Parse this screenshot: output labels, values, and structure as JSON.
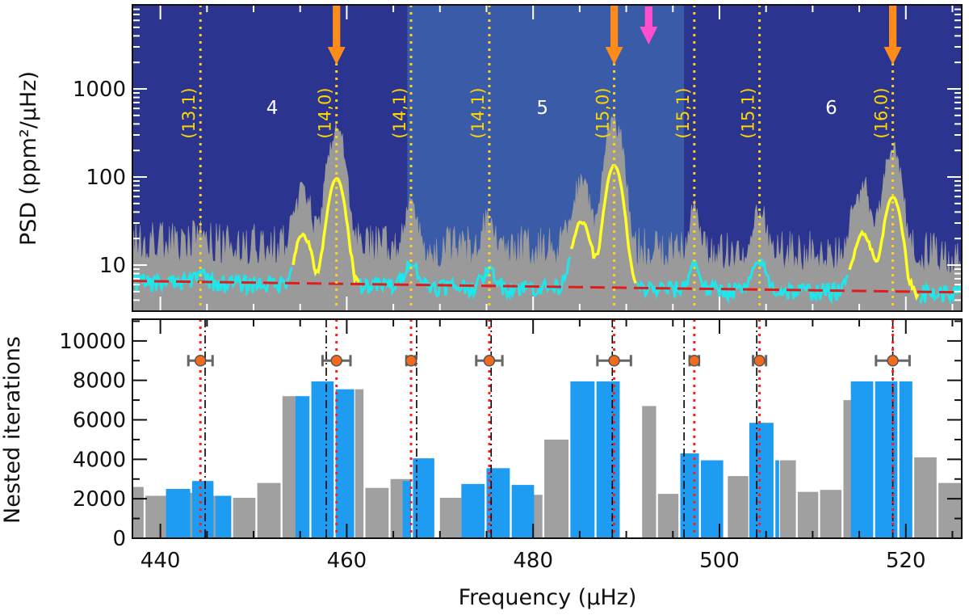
{
  "chart_data": [
    {
      "type": "line",
      "panel": "top",
      "xlabel": "",
      "ylabel": "PSD (ppm²/μHz)",
      "xlim": [
        437,
        526
      ],
      "ylim": [
        3,
        9000
      ],
      "yscale": "log",
      "ytick_labels": [
        "10",
        "100",
        "1000"
      ],
      "yticks": [
        10,
        100,
        1000
      ],
      "colors": {
        "panel_background": "#2b3590",
        "highlight_region": "#3a5ba8",
        "psd_raw": "#9a9a9a",
        "psd_smoothed": "#1ee6ea",
        "psd_fit_modes": "#ffff24",
        "background_fit": "#e11c1c",
        "mode_lines": "#ffd21f",
        "radial_arrows": "#ff8c1a",
        "numax_arrow": "#ff4fcf"
      },
      "regions": [
        {
          "label": "4",
          "x_center": 452
        },
        {
          "label": "5",
          "x_center": 481
        },
        {
          "label": "6",
          "x_center": 512
        }
      ],
      "highlight_range": [
        466.5,
        496.2
      ],
      "mode_lines": [
        {
          "label": "(13,1)",
          "x": 444.3
        },
        {
          "label": "(14,0)",
          "x": 458.9
        },
        {
          "label": "(14,1)",
          "x": 466.9
        },
        {
          "label": "(14,1)",
          "x": 475.3
        },
        {
          "label": "(15,0)",
          "x": 488.7
        },
        {
          "label": "(15,1)",
          "x": 497.3
        },
        {
          "label": "(15,1)",
          "x": 504.3
        },
        {
          "label": "(16,0)",
          "x": 518.6
        }
      ],
      "radial_arrows_x": [
        458.9,
        488.7,
        518.6
      ],
      "numax_arrow_x": 492.4,
      "background_fit": {
        "x": [
          437,
          526
        ],
        "y": [
          6.6,
          4.9
        ]
      },
      "peaks": [
        {
          "x": 444.3,
          "width": 0.6,
          "smooth": 2,
          "raw": 9
        },
        {
          "x": 455.3,
          "width": 0.7,
          "smooth": 16,
          "raw": 70
        },
        {
          "x": 458.9,
          "width": 0.7,
          "smooth": 90,
          "raw": 450
        },
        {
          "x": 466.9,
          "width": 0.6,
          "smooth": 5,
          "raw": 40
        },
        {
          "x": 475.3,
          "width": 0.6,
          "smooth": 3,
          "raw": 25
        },
        {
          "x": 485.2,
          "width": 0.8,
          "smooth": 25,
          "raw": 90
        },
        {
          "x": 488.7,
          "width": 0.7,
          "smooth": 130,
          "raw": 550
        },
        {
          "x": 497.3,
          "width": 0.5,
          "smooth": 5,
          "raw": 35
        },
        {
          "x": 504.3,
          "width": 0.6,
          "smooth": 6,
          "raw": 40
        },
        {
          "x": 515.4,
          "width": 0.8,
          "smooth": 18,
          "raw": 80
        },
        {
          "x": 518.6,
          "width": 0.7,
          "smooth": 55,
          "raw": 260
        }
      ],
      "fit_segments": [
        [
          454.2,
          461.3
        ],
        [
          484.0,
          491.0
        ],
        [
          513.8,
          521.4
        ]
      ]
    },
    {
      "type": "bar",
      "panel": "bottom",
      "xlabel": "Frequency (μHz)",
      "ylabel": "Nested iterations",
      "xlim": [
        437,
        526
      ],
      "ylim": [
        0,
        11100
      ],
      "xticks": [
        440,
        460,
        480,
        500,
        520
      ],
      "xtick_labels": [
        "440",
        "460",
        "480",
        "500",
        "520"
      ],
      "yticks": [
        0,
        2000,
        4000,
        6000,
        8000,
        10000
      ],
      "ytick_labels": [
        "0",
        "2000",
        "4000",
        "6000",
        "8000",
        "10000"
      ],
      "colors": {
        "grey_bars": "#a0a0a0",
        "blue_bars": "#1e9cf2",
        "estimate_lines": "#ff1c1c",
        "reference_lines": "#000000",
        "marker_fill": "#f26a1e",
        "marker_edge": "#555555",
        "errorbar": "#666666"
      },
      "grey_bars": [
        {
          "x0": 437.0,
          "x1": 438.2,
          "value": 2600
        },
        {
          "x0": 438.4,
          "x1": 440.6,
          "value": 2150
        },
        {
          "x0": 440.8,
          "x1": 442.7,
          "value": 2200
        },
        {
          "x0": 442.9,
          "x1": 444.9,
          "value": 2300
        },
        {
          "x0": 445.1,
          "x1": 447.6,
          "value": 2150
        },
        {
          "x0": 447.8,
          "x1": 450.2,
          "value": 2050
        },
        {
          "x0": 450.4,
          "x1": 452.9,
          "value": 2800
        },
        {
          "x0": 453.1,
          "x1": 455.0,
          "value": 7200
        },
        {
          "x0": 460.9,
          "x1": 461.8,
          "value": 7550
        },
        {
          "x0": 462.0,
          "x1": 464.5,
          "value": 2550
        },
        {
          "x0": 464.7,
          "x1": 466.9,
          "value": 3000
        },
        {
          "x0": 470.0,
          "x1": 472.3,
          "value": 2050
        },
        {
          "x0": 478.3,
          "x1": 481.0,
          "value": 2200
        },
        {
          "x0": 481.2,
          "x1": 483.8,
          "value": 5000
        },
        {
          "x0": 491.7,
          "x1": 493.2,
          "value": 6700
        },
        {
          "x0": 493.4,
          "x1": 495.6,
          "value": 2250
        },
        {
          "x0": 500.9,
          "x1": 503.1,
          "value": 3150
        },
        {
          "x0": 506.5,
          "x1": 508.2,
          "value": 3950
        },
        {
          "x0": 508.4,
          "x1": 510.6,
          "value": 2350
        },
        {
          "x0": 510.8,
          "x1": 513.1,
          "value": 2450
        },
        {
          "x0": 513.3,
          "x1": 515.0,
          "value": 7000
        },
        {
          "x0": 520.9,
          "x1": 523.3,
          "value": 4100
        },
        {
          "x0": 523.5,
          "x1": 526.0,
          "value": 2800
        }
      ],
      "blue_bars": [
        {
          "x0": 440.6,
          "x1": 443.2,
          "value": 2500
        },
        {
          "x0": 443.4,
          "x1": 445.7,
          "value": 2900
        },
        {
          "x0": 445.9,
          "x1": 447.6,
          "value": 2150
        },
        {
          "x0": 454.5,
          "x1": 456.0,
          "value": 7200
        },
        {
          "x0": 456.2,
          "x1": 458.6,
          "value": 7950
        },
        {
          "x0": 458.8,
          "x1": 460.8,
          "value": 7550
        },
        {
          "x0": 466.0,
          "x1": 466.9,
          "value": 2900
        },
        {
          "x0": 467.1,
          "x1": 469.4,
          "value": 4050
        },
        {
          "x0": 472.3,
          "x1": 474.8,
          "value": 2750
        },
        {
          "x0": 475.0,
          "x1": 477.5,
          "value": 3550
        },
        {
          "x0": 477.7,
          "x1": 480.1,
          "value": 2700
        },
        {
          "x0": 484.0,
          "x1": 486.6,
          "value": 7950
        },
        {
          "x0": 486.8,
          "x1": 489.3,
          "value": 7950
        },
        {
          "x0": 495.8,
          "x1": 497.8,
          "value": 4300
        },
        {
          "x0": 498.0,
          "x1": 500.4,
          "value": 3950
        },
        {
          "x0": 503.2,
          "x1": 505.8,
          "value": 5850
        },
        {
          "x0": 506.0,
          "x1": 506.4,
          "value": 3950
        },
        {
          "x0": 514.1,
          "x1": 516.5,
          "value": 7950
        },
        {
          "x0": 516.7,
          "x1": 519.1,
          "value": 7950
        },
        {
          "x0": 519.3,
          "x1": 520.7,
          "value": 7950
        }
      ],
      "red_dotted_lines": [
        444.3,
        458.9,
        466.9,
        475.3,
        488.7,
        497.3,
        504.3,
        518.6
      ],
      "black_dashdot_lines": [
        444.8,
        457.8,
        467.5,
        475.5,
        488.5,
        496.2,
        504.0,
        518.6
      ],
      "frequency_estimates": [
        {
          "x": 444.3,
          "y": 9000,
          "err": 1.3
        },
        {
          "x": 458.9,
          "y": 9000,
          "err": 1.5
        },
        {
          "x": 466.9,
          "y": 9000,
          "err": 0.5
        },
        {
          "x": 475.3,
          "y": 9000,
          "err": 1.4
        },
        {
          "x": 488.7,
          "y": 9000,
          "err": 1.8
        },
        {
          "x": 497.3,
          "y": 9000,
          "err": 0.5
        },
        {
          "x": 504.3,
          "y": 9000,
          "err": 0.7
        },
        {
          "x": 518.6,
          "y": 9000,
          "err": 1.8
        }
      ]
    }
  ]
}
